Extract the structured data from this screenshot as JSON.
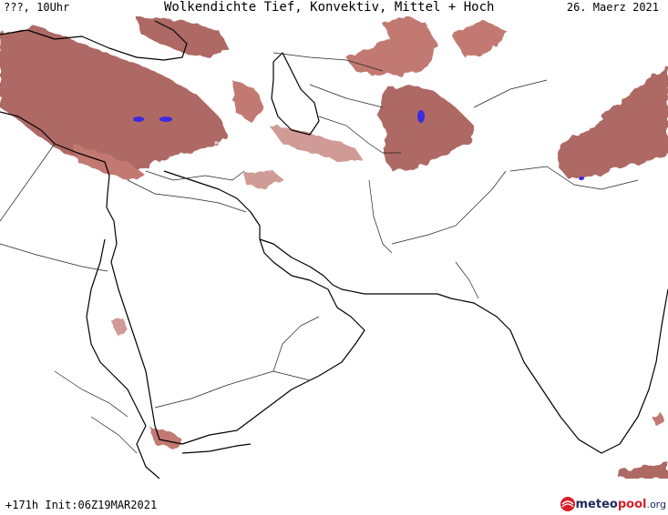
{
  "header": {
    "left": "???, 10Uhr",
    "center": "Wolkendichte  Tief, Konvektiv, Mittel + Hoch",
    "right": "26. Maerz 2021"
  },
  "footer": {
    "left": "+171h Init:06Z19MAR2021"
  },
  "logo": {
    "meteo": "meteo",
    "pool": "pool",
    "org": ".org",
    "icon": "meteopool-globe-icon"
  },
  "colors": {
    "cloud": "#a0504a",
    "cloud_light": "#c88a84",
    "convective": "#3b2be0",
    "coastline": "#000000",
    "border": "#222222"
  }
}
